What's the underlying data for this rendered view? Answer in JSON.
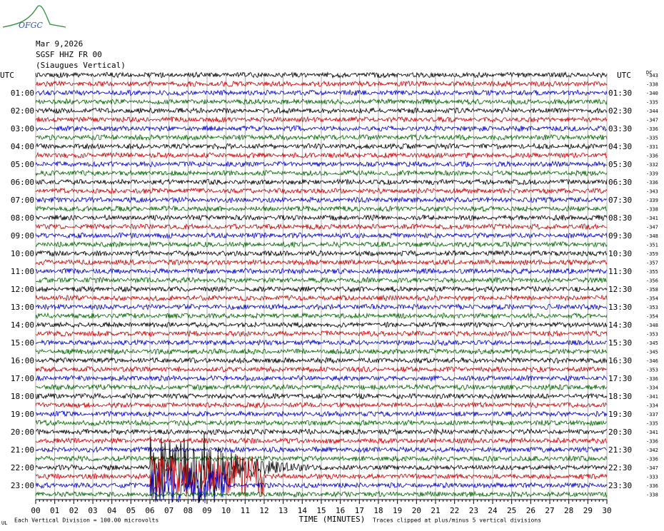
{
  "header": {
    "logo": "OFGC",
    "date": "Mar 9,2026",
    "station": "SGSF HHZ FR 00",
    "location": "(Siaugues Vertical)"
  },
  "left_axis": {
    "title": "UTC",
    "labels": [
      "01:00",
      "02:00",
      "03:00",
      "04:00",
      "05:00",
      "06:00",
      "07:00",
      "08:00",
      "09:00",
      "10:00",
      "11:00",
      "12:00",
      "13:00",
      "14:00",
      "15:00",
      "16:00",
      "17:00",
      "18:00",
      "19:00",
      "20:00",
      "21:00",
      "22:00",
      "23:00"
    ]
  },
  "right_axis": {
    "title": "UTC",
    "labels": [
      "01:30",
      "02:30",
      "03:30",
      "04:30",
      "05:30",
      "06:30",
      "07:30",
      "08:30",
      "09:30",
      "10:30",
      "11:30",
      "12:30",
      "13:30",
      "14:30",
      "15:30",
      "16:30",
      "17:30",
      "18:30",
      "19:30",
      "20:30",
      "21:30",
      "22:30",
      "23:30"
    ]
  },
  "right_values": {
    "title": "DC",
    "values": [
      "-343",
      "-338",
      "-340",
      "-335",
      "-344",
      "-347",
      "-336",
      "-335",
      "-331",
      "-336",
      "-332",
      "-339",
      "-336",
      "-343",
      "-339",
      "-338",
      "-341",
      "-347",
      "-348",
      "-351",
      "-359",
      "-357",
      "-355",
      "-356",
      "-358",
      "-354",
      "-353",
      "-354",
      "-348",
      "-353",
      "-345",
      "-345",
      "-346",
      "-353",
      "-336",
      "-334",
      "-341",
      "-334",
      "-337",
      "-335",
      "-341",
      "-336",
      "-342",
      "-336",
      "-347",
      "-333",
      "-336",
      "-338"
    ]
  },
  "time_axis": {
    "title": "TIME (MINUTES)",
    "labels": [
      "00",
      "01",
      "02",
      "03",
      "04",
      "05",
      "06",
      "07",
      "08",
      "09",
      "10",
      "11",
      "12",
      "13",
      "14",
      "15",
      "16",
      "17",
      "18",
      "19",
      "20",
      "21",
      "22",
      "23",
      "24",
      "25",
      "26",
      "27",
      "28",
      "29",
      "30"
    ]
  },
  "footer": {
    "scale": "Each Vertical Division =  100.00 microvolts",
    "clip": "Traces clipped at plus/minus 5 vertical divisions",
    "corner": "UL"
  },
  "trace_colors": [
    "#000000",
    "#cc0000",
    "#0000cc",
    "#006600"
  ]
}
